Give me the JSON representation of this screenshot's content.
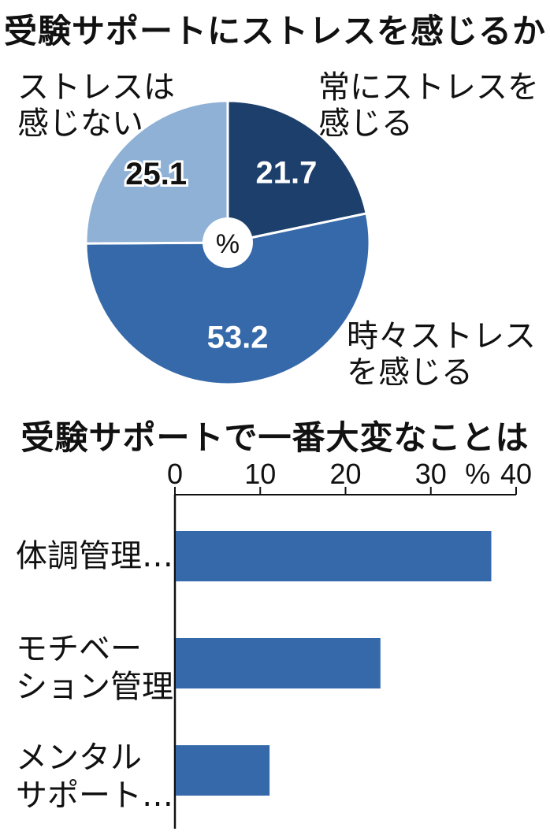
{
  "colors": {
    "dark_navy": "#1c3f6b",
    "mid_blue": "#3669aa",
    "light_blue": "#8fb1d6",
    "bar_blue": "#3669aa"
  },
  "pie_title": "受験サポートにストレスを感じるか",
  "bar_title": "受験サポートで一番大変なことは",
  "chart_data": [
    {
      "type": "pie",
      "title": "受験サポートにストレスを感じるか",
      "center_label": "%",
      "slices": [
        {
          "label": "常にストレスを\n感じる",
          "value": 21.7,
          "value_label": "21.7",
          "color": "#1c3f6b"
        },
        {
          "label": "時々ストレス\nを感じる",
          "value": 53.2,
          "value_label": "53.2",
          "color": "#3669aa"
        },
        {
          "label": "ストレスは\n感じない",
          "value": 25.1,
          "value_label": "25.1",
          "color": "#8fb1d6"
        }
      ]
    },
    {
      "type": "bar",
      "orientation": "horizontal",
      "title": "受験サポートで一番大変なことは",
      "categories": [
        "体調管理…",
        "モチベー\nション管理",
        "メンタル\nサポート…"
      ],
      "values": [
        37,
        24,
        11
      ],
      "xlim": [
        0,
        40
      ],
      "ticks": [
        "0",
        "10",
        "20",
        "30",
        "40"
      ],
      "unit_label": "%"
    }
  ]
}
